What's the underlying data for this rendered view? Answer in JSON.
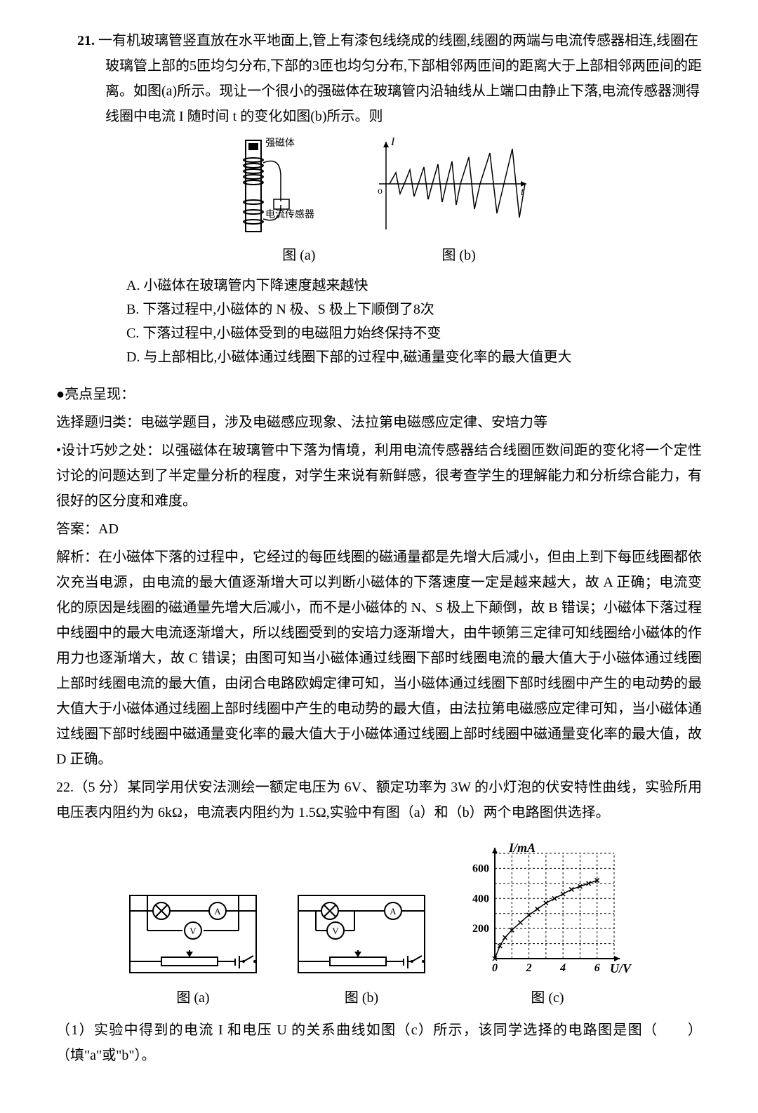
{
  "q21": {
    "number": "21.",
    "stem": "一有机玻璃管竖直放在水平地面上,管上有漆包线绕成的线圈,线圈的两端与电流传感器相连,线圈在玻璃管上部的5匝均匀分布,下部的3匝也均匀分布,下部相邻两匝间的距离大于上部相邻两匝间的距离。如图(a)所示。现让一个很小的强磁体在玻璃管内沿轴线从上端口由静止下落,电流传感器测得线圈中电流 I 随时间 t 的变化如图(b)所示。则",
    "labels": {
      "magnet": "强磁体",
      "sensor": "电流传感器",
      "fig_a": "图 (a)",
      "fig_b": "图 (b)",
      "axis_I": "I",
      "axis_t": "t",
      "axis_o": "o"
    },
    "options": {
      "A": "A. 小磁体在玻璃管内下降速度越来越快",
      "B": "B. 下落过程中,小磁体的 N 极、S 极上下顺倒了8次",
      "C": "C. 下落过程中,小磁体受到的电磁阻力始终保持不变",
      "D": "D. 与上部相比,小磁体通过线圈下部的过程中,磁通量变化率的最大值更大"
    },
    "highlight_title": "●亮点呈现：",
    "classify": "选择题归类：电磁学题目，涉及电磁感应现象、法拉第电磁感应定律、安培力等",
    "cleverness": "•设计巧妙之处：以强磁体在玻璃管中下落为情境，利用电流传感器结合线圈匝数间距的变化将一个定性讨论的问题达到了半定量分析的程度，对学生来说有新鲜感，很考查学生的理解能力和分析综合能力，有很好的区分度和难度。",
    "answer_label": "答案：AD",
    "analysis": "解析：在小磁体下落的过程中，它经过的每匝线圈的磁通量都是先增大后减小，但由上到下每匝线圈都依次充当电源，由电流的最大值逐渐增大可以判断小磁体的下落速度一定是越来越大，故 A 正确；电流变化的原因是线圈的磁通量先增大后减小，而不是小磁体的 N、S 极上下颠倒，故 B 错误；小磁体下落过程中线圈中的最大电流逐渐增大，所以线圈受到的安培力逐渐增大，由牛顿第三定律可知线圈给小磁体的作用力也逐渐增大，故 C 错误；由图可知当小磁体通过线圈下部时线圈电流的最大值大于小磁体通过线圈上部时线圈电流的最大值，由闭合电路欧姆定律可知，当小磁体通过线圈下部时线圈中产生的电动势的最大值大于小磁体通过线圈上部时线圈中产生的电动势的最大值，由法拉第电磁感应定律可知，当小磁体通过线圈下部时线圈中磁通量变化率的最大值大于小磁体通过线圈上部时线圈中磁通量变化率的最大值，故 D 正确。"
  },
  "q22": {
    "header": "22.（5 分）某同学用伏安法测绘一额定电压为 6V、额定功率为 3W 的小灯泡的伏安特性曲线，实验所用电压表内阻约为 6kΩ，电流表内阻约为 1.5Ω,实验中有图（a）和（b）两个电路图供选择。",
    "fig_a": "图 (a)",
    "fig_b": "图 (b)",
    "fig_c": "图 (c)",
    "chart": {
      "y_label": "I/mA",
      "x_label": "U/V",
      "y_ticks": [
        "200",
        "400",
        "600"
      ],
      "x_ticks": [
        "0",
        "2",
        "4",
        "6"
      ],
      "data_points": [
        [
          0,
          0
        ],
        [
          0.3,
          85
        ],
        [
          0.6,
          140
        ],
        [
          1.0,
          190
        ],
        [
          1.5,
          240
        ],
        [
          2.0,
          290
        ],
        [
          2.5,
          330
        ],
        [
          3.0,
          370
        ],
        [
          3.5,
          400
        ],
        [
          4.0,
          430
        ],
        [
          4.5,
          460
        ],
        [
          5.0,
          480
        ],
        [
          5.5,
          500
        ],
        [
          6.0,
          520
        ]
      ],
      "grid_color": "#000000",
      "bg": "#ffffff"
    },
    "sub1": "（1）实验中得到的电流 I 和电压 U 的关系曲线如图（c）所示，该同学选择的电路图是图（　　）（填\"a\"或\"b\"）。"
  }
}
